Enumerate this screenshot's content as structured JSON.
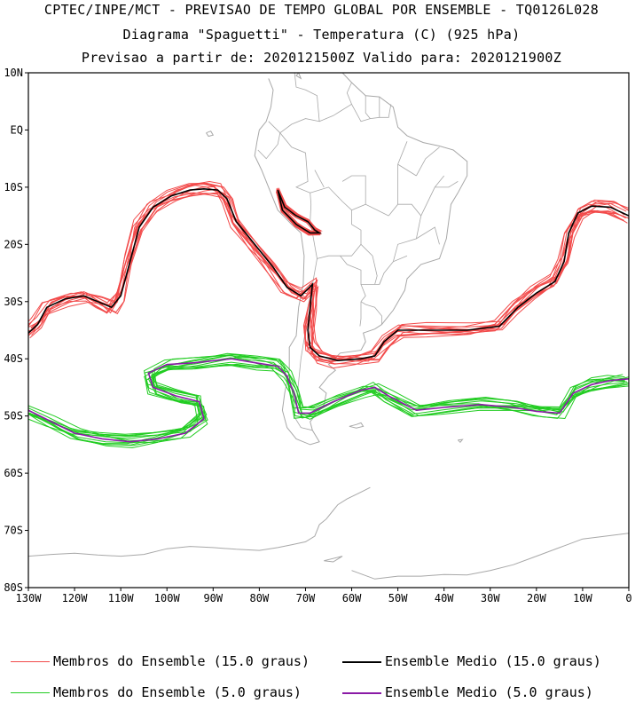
{
  "header": {
    "line1": "CPTEC/INPE/MCT - PREVISAO DE TEMPO GLOBAL POR ENSEMBLE - TQ0126L028",
    "line2": "Diagrama \"Spaguetti\" - Temperatura (C) (925 hPa)",
    "line3": "Previsao a partir de: 2020121500Z  Valido para: 2020121900Z"
  },
  "map": {
    "lon_range": [
      -130,
      0
    ],
    "lat_range": [
      -80,
      10
    ],
    "lat_ticks": [
      {
        "value": 10,
        "label": "10N"
      },
      {
        "value": 0,
        "label": "EQ"
      },
      {
        "value": -10,
        "label": "10S"
      },
      {
        "value": -20,
        "label": "20S"
      },
      {
        "value": -30,
        "label": "30S"
      },
      {
        "value": -40,
        "label": "40S"
      },
      {
        "value": -50,
        "label": "50S"
      },
      {
        "value": -60,
        "label": "60S"
      },
      {
        "value": -70,
        "label": "70S"
      },
      {
        "value": -80,
        "label": "80S"
      }
    ],
    "lon_ticks": [
      {
        "value": -130,
        "label": "130W"
      },
      {
        "value": -120,
        "label": "120W"
      },
      {
        "value": -110,
        "label": "110W"
      },
      {
        "value": -100,
        "label": "100W"
      },
      {
        "value": -90,
        "label": "90W"
      },
      {
        "value": -80,
        "label": "80W"
      },
      {
        "value": -70,
        "label": "70W"
      },
      {
        "value": -60,
        "label": "60W"
      },
      {
        "value": -50,
        "label": "50W"
      },
      {
        "value": -40,
        "label": "40W"
      },
      {
        "value": -30,
        "label": "30W"
      },
      {
        "value": -20,
        "label": "20W"
      },
      {
        "value": -10,
        "label": "10W"
      },
      {
        "value": 0,
        "label": "0"
      }
    ],
    "colors": {
      "member_15": "#f24a4a",
      "mean_15": "#000000",
      "member_5": "#22cc22",
      "mean_5": "#8a1aa6",
      "coast": "#a8a8a8"
    },
    "contour_15_mean": [
      [
        -130,
        -35.5
      ],
      [
        -128,
        -34
      ],
      [
        -126,
        -31
      ],
      [
        -122,
        -29.5
      ],
      [
        -118,
        -29
      ],
      [
        -115,
        -30
      ],
      [
        -112,
        -31
      ],
      [
        -110,
        -29
      ],
      [
        -108,
        -23
      ],
      [
        -106,
        -17
      ],
      [
        -103,
        -13.5
      ],
      [
        -99,
        -11.5
      ],
      [
        -95,
        -10.5
      ],
      [
        -92,
        -10.3
      ],
      [
        -89,
        -10.5
      ],
      [
        -87,
        -12
      ],
      [
        -85,
        -16
      ],
      [
        -81,
        -20
      ],
      [
        -77,
        -24
      ],
      [
        -74,
        -27.5
      ],
      [
        -71,
        -29
      ],
      [
        -68.5,
        -27
      ],
      [
        -69,
        -31
      ],
      [
        -69.5,
        -35
      ],
      [
        -69,
        -38
      ],
      [
        -67,
        -39.5
      ],
      [
        -63,
        -40.3
      ],
      [
        -58,
        -40
      ],
      [
        -55,
        -39.5
      ],
      [
        -53,
        -37
      ],
      [
        -50,
        -35
      ],
      [
        -45,
        -35
      ],
      [
        -35,
        -35
      ],
      [
        -28,
        -34.3
      ],
      [
        -24,
        -31
      ],
      [
        -20,
        -28.5
      ],
      [
        -16,
        -26.5
      ],
      [
        -14,
        -23
      ],
      [
        -13,
        -18
      ],
      [
        -11,
        -14.5
      ],
      [
        -8,
        -13.3
      ],
      [
        -4,
        -13.5
      ],
      [
        0,
        -15
      ]
    ],
    "contour_15_lake": [
      [
        -76,
        -10.5
      ],
      [
        -74.5,
        -13.5
      ],
      [
        -72,
        -15
      ],
      [
        -69.5,
        -16
      ],
      [
        -68,
        -17.5
      ],
      [
        -67,
        -18
      ],
      [
        -69,
        -18
      ],
      [
        -72,
        -16.5
      ],
      [
        -75,
        -14
      ],
      [
        -76,
        -10.5
      ]
    ],
    "contour_5_mean": [
      [
        -130,
        -49
      ],
      [
        -125,
        -51
      ],
      [
        -120,
        -53
      ],
      [
        -114,
        -54
      ],
      [
        -108,
        -54.5
      ],
      [
        -102,
        -54
      ],
      [
        -96,
        -53
      ],
      [
        -92,
        -50.5
      ],
      [
        -93,
        -47.5
      ],
      [
        -98,
        -46.5
      ],
      [
        -103,
        -45
      ],
      [
        -104,
        -42.5
      ],
      [
        -100,
        -41
      ],
      [
        -94,
        -40.7
      ],
      [
        -86,
        -40
      ],
      [
        -80,
        -40.8
      ],
      [
        -76,
        -41.3
      ],
      [
        -74,
        -43
      ],
      [
        -72.5,
        -46
      ],
      [
        -71.5,
        -49.5
      ],
      [
        -69,
        -49.5
      ],
      [
        -64,
        -47.5
      ],
      [
        -58,
        -45.5
      ],
      [
        -55,
        -45
      ],
      [
        -52,
        -46.5
      ],
      [
        -46,
        -49
      ],
      [
        -40,
        -48.5
      ],
      [
        -32,
        -48
      ],
      [
        -25,
        -48.5
      ],
      [
        -20,
        -49.2
      ],
      [
        -15,
        -49.5
      ],
      [
        -12,
        -46
      ],
      [
        -8,
        -44.5
      ],
      [
        -4,
        -43.8
      ],
      [
        0,
        -43.5
      ]
    ],
    "coastlines": [
      [
        [
          -78,
          9
        ],
        [
          -77,
          7
        ],
        [
          -77.5,
          4
        ],
        [
          -78.5,
          1.5
        ],
        [
          -80,
          0
        ],
        [
          -80.5,
          -2
        ],
        [
          -81,
          -4.5
        ],
        [
          -79.5,
          -7
        ],
        [
          -78,
          -10
        ],
        [
          -76,
          -14
        ],
        [
          -73,
          -16.5
        ],
        [
          -71,
          -18
        ],
        [
          -70.3,
          -22
        ],
        [
          -70.5,
          -27
        ],
        [
          -71.5,
          -31
        ],
        [
          -72,
          -36
        ],
        [
          -73.5,
          -38
        ],
        [
          -73.5,
          -42
        ],
        [
          -74.5,
          -46
        ],
        [
          -75,
          -49
        ],
        [
          -74,
          -52
        ],
        [
          -72,
          -54
        ],
        [
          -69,
          -55
        ],
        [
          -67,
          -54.5
        ],
        [
          -68.5,
          -52.5
        ],
        [
          -69,
          -51
        ],
        [
          -68,
          -50
        ],
        [
          -66,
          -48
        ],
        [
          -65.5,
          -46
        ],
        [
          -67,
          -45
        ],
        [
          -65,
          -43
        ],
        [
          -63.5,
          -42
        ],
        [
          -65,
          -41
        ],
        [
          -62.5,
          -39
        ],
        [
          -58,
          -38.5
        ],
        [
          -57,
          -37
        ],
        [
          -57.5,
          -35.5
        ],
        [
          -55,
          -34.8
        ],
        [
          -53.5,
          -34
        ],
        [
          -51,
          -31.5
        ],
        [
          -48.5,
          -28
        ],
        [
          -48,
          -26
        ],
        [
          -45,
          -23.5
        ],
        [
          -41,
          -22.5
        ],
        [
          -39.5,
          -19
        ],
        [
          -38.5,
          -13
        ],
        [
          -37,
          -11
        ],
        [
          -35,
          -8
        ],
        [
          -35,
          -5.5
        ],
        [
          -38,
          -3.5
        ],
        [
          -41,
          -2.8
        ],
        [
          -44.5,
          -2.2
        ],
        [
          -48,
          -1
        ],
        [
          -50,
          0.5
        ],
        [
          -51,
          4
        ],
        [
          -54,
          5.8
        ],
        [
          -57,
          6
        ],
        [
          -60,
          8.3
        ],
        [
          -62,
          10
        ],
        [
          -64,
          10.3
        ],
        [
          -67,
          10.5
        ],
        [
          -70,
          11.5
        ],
        [
          -72,
          11.2
        ],
        [
          -73,
          10
        ]
      ],
      [
        [
          -71.5,
          10
        ],
        [
          -72,
          9.5
        ],
        [
          -71,
          9
        ],
        [
          -71.5,
          10
        ]
      ],
      [
        [
          -59,
          -51.5
        ],
        [
          -58,
          -51.2
        ],
        [
          -57.5,
          -51.8
        ],
        [
          -59,
          -52.1
        ],
        [
          -60.5,
          -51.8
        ],
        [
          -59,
          -51.5
        ]
      ],
      [
        [
          -91.5,
          -0.5
        ],
        [
          -90.5,
          -0.2
        ],
        [
          -90,
          -0.9
        ],
        [
          -91,
          -1.1
        ],
        [
          -91.5,
          -0.5
        ]
      ],
      [
        [
          -37,
          -54.2
        ],
        [
          -36,
          -54.1
        ],
        [
          -36.5,
          -54.6
        ],
        [
          -37,
          -54.2
        ]
      ],
      [
        [
          -56,
          -62.5
        ],
        [
          -58,
          -63.3
        ],
        [
          -61,
          -64.5
        ],
        [
          -63,
          -65.5
        ],
        [
          -64,
          -66.5
        ],
        [
          -65.5,
          -68
        ],
        [
          -67,
          -69
        ],
        [
          -68,
          -71
        ],
        [
          -70,
          -72
        ],
        [
          -73,
          -72.5
        ],
        [
          -76,
          -73
        ],
        [
          -80,
          -73.5
        ],
        [
          -85,
          -73.3
        ],
        [
          -90,
          -73
        ],
        [
          -95,
          -72.8
        ],
        [
          -100,
          -73.2
        ],
        [
          -105,
          -74.2
        ],
        [
          -110,
          -74.5
        ],
        [
          -115,
          -74.3
        ],
        [
          -120,
          -74
        ],
        [
          -125,
          -74.2
        ],
        [
          -130,
          -74.5
        ]
      ],
      [
        [
          -60,
          -77
        ],
        [
          -55,
          -78.5
        ],
        [
          -50,
          -78
        ],
        [
          -45,
          -78
        ],
        [
          -40,
          -77.7
        ],
        [
          -35,
          -77.8
        ],
        [
          -30,
          -77
        ],
        [
          -25,
          -76
        ],
        [
          -20,
          -74.5
        ],
        [
          -15,
          -73
        ],
        [
          -10,
          -71.5
        ],
        [
          -5,
          -71
        ],
        [
          0,
          -70.5
        ]
      ],
      [
        [
          -62,
          -74.5
        ],
        [
          -64,
          -75.5
        ],
        [
          -66,
          -75.3
        ],
        [
          -62,
          -74.5
        ]
      ]
    ],
    "borders": [
      [
        [
          -75.5,
          -0.5
        ],
        [
          -78,
          1.5
        ]
      ],
      [
        [
          -80.3,
          -3.5
        ],
        [
          -78.5,
          -5
        ],
        [
          -76,
          -2.5
        ],
        [
          -75.5,
          -0.5
        ],
        [
          -73,
          -3
        ],
        [
          -70,
          -4
        ],
        [
          -69.5,
          -9
        ],
        [
          -72,
          -10
        ],
        [
          -69,
          -11
        ],
        [
          -68.8,
          -13
        ],
        [
          -69,
          -16
        ]
      ],
      [
        [
          -75.5,
          -0.5
        ],
        [
          -73,
          1
        ],
        [
          -70,
          2
        ],
        [
          -67,
          1.5
        ],
        [
          -67.5,
          6
        ],
        [
          -70,
          7
        ],
        [
          -72,
          7.5
        ],
        [
          -72.5,
          11
        ]
      ],
      [
        [
          -67,
          1.5
        ],
        [
          -64,
          2.5
        ],
        [
          -60,
          4.5
        ],
        [
          -61,
          6.5
        ],
        [
          -60,
          8.3
        ]
      ],
      [
        [
          -60,
          4.5
        ],
        [
          -58,
          1.5
        ],
        [
          -56,
          2
        ],
        [
          -54,
          2.2
        ],
        [
          -52,
          2.2
        ],
        [
          -51.5,
          4.5
        ]
      ],
      [
        [
          -57,
          6
        ],
        [
          -57,
          3
        ],
        [
          -56,
          2
        ]
      ],
      [
        [
          -54,
          5.8
        ],
        [
          -54,
          3.5
        ],
        [
          -54,
          2.2
        ]
      ],
      [
        [
          -69,
          -11
        ],
        [
          -65,
          -10
        ],
        [
          -62,
          -12.5
        ],
        [
          -60,
          -14
        ],
        [
          -60,
          -16.5
        ],
        [
          -58,
          -17.5
        ],
        [
          -58,
          -20
        ],
        [
          -60,
          -22
        ],
        [
          -62.5,
          -22
        ],
        [
          -65,
          -22
        ],
        [
          -67.5,
          -22.5
        ],
        [
          -68.5,
          -18
        ],
        [
          -69,
          -16
        ]
      ],
      [
        [
          -62.5,
          -22
        ],
        [
          -61,
          -23.5
        ],
        [
          -58,
          -24.5
        ],
        [
          -58,
          -27
        ],
        [
          -55,
          -27
        ],
        [
          -54.5,
          -25.5
        ],
        [
          -55.5,
          -22
        ],
        [
          -58,
          -20
        ]
      ],
      [
        [
          -67.5,
          -22.5
        ],
        [
          -68.5,
          -27
        ],
        [
          -69.5,
          -31
        ],
        [
          -70,
          -35
        ],
        [
          -71,
          -40
        ],
        [
          -71.5,
          -44
        ],
        [
          -72,
          -48
        ],
        [
          -72.5,
          -50
        ],
        [
          -71,
          -52
        ],
        [
          -68.5,
          -52.5
        ]
      ],
      [
        [
          -58,
          -30
        ],
        [
          -57,
          -30.5
        ],
        [
          -55,
          -31
        ],
        [
          -53.5,
          -32.5
        ],
        [
          -53.5,
          -34
        ]
      ],
      [
        [
          -58,
          -30
        ],
        [
          -58,
          -33
        ],
        [
          -58.2,
          -34.3
        ]
      ],
      [
        [
          -58,
          -27
        ],
        [
          -57,
          -29
        ],
        [
          -58,
          -30
        ]
      ],
      [
        [
          -55,
          -27
        ],
        [
          -54,
          -27
        ],
        [
          -53.5,
          -26
        ]
      ],
      [
        [
          -48,
          -22
        ],
        [
          -51,
          -23
        ],
        [
          -50,
          -20
        ],
        [
          -46,
          -19
        ],
        [
          -45,
          -15
        ],
        [
          -47,
          -13
        ],
        [
          -50,
          -13
        ],
        [
          -52,
          -15
        ]
      ],
      [
        [
          -52,
          -15
        ],
        [
          -57,
          -13
        ],
        [
          -60,
          -14
        ]
      ],
      [
        [
          -46,
          -19
        ],
        [
          -42,
          -17
        ],
        [
          -41,
          -20
        ]
      ],
      [
        [
          -45,
          -15
        ],
        [
          -42,
          -10
        ],
        [
          -40,
          -8
        ]
      ],
      [
        [
          -50,
          -13
        ],
        [
          -50,
          -6
        ],
        [
          -48,
          -2
        ]
      ],
      [
        [
          -57,
          -13
        ],
        [
          -57,
          -8
        ],
        [
          -60,
          -8
        ],
        [
          -62,
          -9
        ]
      ],
      [
        [
          -66,
          -10
        ],
        [
          -68,
          -7
        ]
      ],
      [
        [
          -50,
          -6
        ],
        [
          -46,
          -8
        ]
      ],
      [
        [
          -46,
          -8
        ],
        [
          -44,
          -5
        ],
        [
          -41,
          -3
        ]
      ],
      [
        [
          -42,
          -10
        ],
        [
          -39,
          -10
        ],
        [
          -37,
          -9
        ]
      ],
      [
        [
          -51,
          -23
        ],
        [
          -53,
          -25
        ],
        [
          -54,
          -27
        ]
      ]
    ]
  },
  "legend": {
    "item1": "Membros do Ensemble (15.0 graus)",
    "item2": "Ensemble Medio (15.0 graus)",
    "item3": "Membros do Ensemble (5.0 graus)",
    "item4": "Ensemble Medio (5.0 graus)"
  }
}
